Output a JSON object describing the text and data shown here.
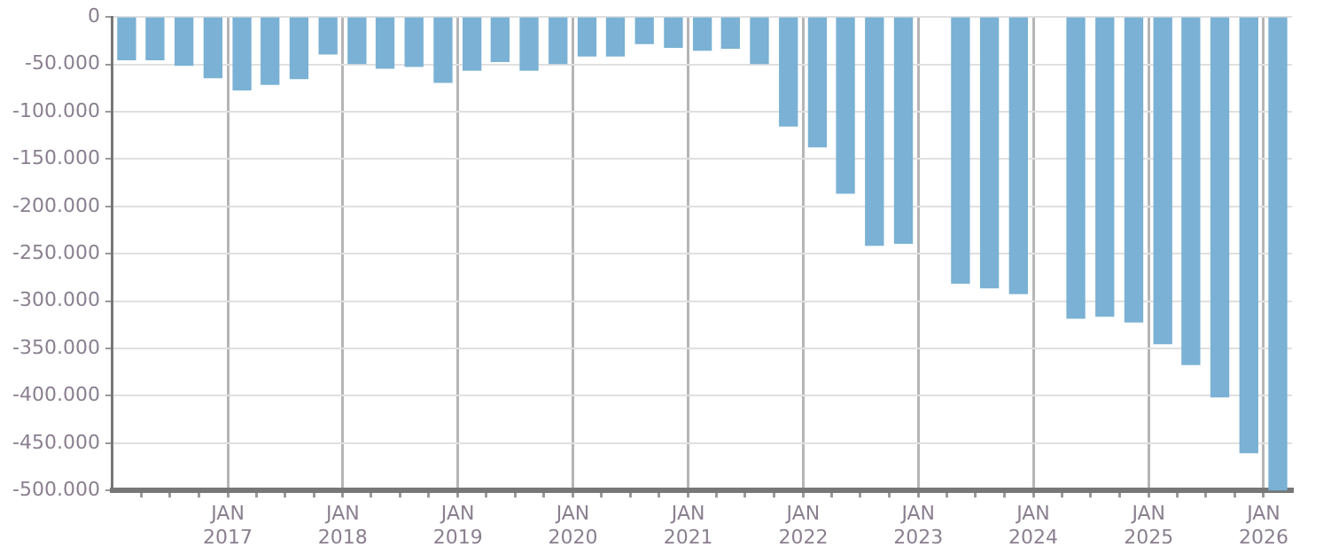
{
  "chart_data": {
    "type": "bar",
    "x": [
      "2016-02-15",
      "2016-05-15",
      "2016-08-15",
      "2016-11-15",
      "2017-02-15",
      "2017-05-15",
      "2017-08-15",
      "2017-11-15",
      "2018-02-15",
      "2018-05-15",
      "2018-08-15",
      "2018-11-15",
      "2019-02-15",
      "2019-05-15",
      "2019-08-15",
      "2019-11-15",
      "2020-02-15",
      "2020-05-15",
      "2020-08-15",
      "2020-11-15",
      "2021-02-15",
      "2021-05-15",
      "2021-08-15",
      "2021-11-15",
      "2022-02-15",
      "2022-05-15",
      "2022-08-15",
      "2022-11-15",
      "2023-02-15",
      "2023-05-15",
      "2023-08-15",
      "2023-11-15",
      "2024-02-15",
      "2024-05-15",
      "2024-08-15",
      "2024-11-15",
      "2025-02-15",
      "2025-05-15",
      "2025-08-15",
      "2025-11-15",
      "2026-02-15"
    ],
    "values": [
      -45000,
      -45000,
      -51000,
      -64000,
      -77000,
      -71000,
      -65000,
      -39000,
      -49000,
      -54000,
      -52000,
      -69000,
      -56000,
      -47000,
      -56000,
      -49000,
      -41000,
      -41000,
      -28000,
      -32000,
      -35000,
      -33000,
      -49000,
      -115000,
      -137000,
      -186000,
      -241000,
      -239000,
      null,
      -281000,
      -286000,
      -292000,
      null,
      -318000,
      -316000,
      -322000,
      -345000,
      -367000,
      -401000,
      -460000,
      -500000
    ],
    "color": "#7ab1d4",
    "ylim": [
      -500000,
      0
    ],
    "yticks": [
      0,
      {
        "value": -50000,
        "label": "-50.000"
      },
      {
        "value": -100000,
        "label": "-100.000"
      },
      {
        "value": -150000,
        "label": "-150.000"
      },
      {
        "value": -200000,
        "label": "-200.000"
      },
      {
        "value": -250000,
        "label": "-250.000"
      },
      {
        "value": -300000,
        "label": "-300.000"
      },
      {
        "value": -350000,
        "label": "-350.000"
      },
      {
        "value": -400000,
        "label": "-400.000"
      },
      {
        "value": -450000,
        "label": "-450.000"
      },
      {
        "value": -500000,
        "label": "-500.000"
      }
    ],
    "xlim": [
      "2016-01-01",
      "2026-04-01"
    ],
    "xticks": [
      {
        "value": "2016-04-01",
        "label": null
      },
      {
        "value": "2016-07-01",
        "label": null
      },
      {
        "value": "2016-10-01",
        "label": null
      },
      {
        "value": "2017-01-01",
        "label": "JAN 2017"
      },
      {
        "value": "2017-04-01",
        "label": null
      },
      {
        "value": "2017-07-01",
        "label": null
      },
      {
        "value": "2017-10-01",
        "label": null
      },
      {
        "value": "2018-01-01",
        "label": "JAN 2018"
      },
      {
        "value": "2018-04-01",
        "label": null
      },
      {
        "value": "2018-07-01",
        "label": null
      },
      {
        "value": "2018-10-01",
        "label": null
      },
      {
        "value": "2019-01-01",
        "label": "JAN 2019"
      },
      {
        "value": "2019-04-01",
        "label": null
      },
      {
        "value": "2019-07-01",
        "label": null
      },
      {
        "value": "2019-10-01",
        "label": null
      },
      {
        "value": "2020-01-01",
        "label": "JAN 2020"
      },
      {
        "value": "2020-04-01",
        "label": null
      },
      {
        "value": "2020-07-01",
        "label": null
      },
      {
        "value": "2020-10-01",
        "label": null
      },
      {
        "value": "2021-01-01",
        "label": "JAN 2021"
      },
      {
        "value": "2021-04-01",
        "label": null
      },
      {
        "value": "2021-07-01",
        "label": null
      },
      {
        "value": "2021-10-01",
        "label": null
      },
      {
        "value": "2022-01-01",
        "label": "JAN 2022"
      },
      {
        "value": "2022-04-01",
        "label": null
      },
      {
        "value": "2022-07-01",
        "label": null
      },
      {
        "value": "2022-10-01",
        "label": null
      },
      {
        "value": "2023-01-01",
        "label": "JAN 2023"
      },
      {
        "value": "2023-04-01",
        "label": null
      },
      {
        "value": "2023-07-01",
        "label": null
      },
      {
        "value": "2023-10-01",
        "label": null
      },
      {
        "value": "2024-01-01",
        "label": "JAN 2024"
      },
      {
        "value": "2024-04-01",
        "label": null
      },
      {
        "value": "2024-07-01",
        "label": null
      },
      {
        "value": "2024-10-01",
        "label": null
      },
      {
        "value": "2025-01-01",
        "label": "JAN 2025"
      },
      {
        "value": "2025-04-01",
        "label": null
      },
      {
        "value": "2025-07-01",
        "label": null
      },
      {
        "value": "2025-10-01",
        "label": null
      },
      {
        "value": "2026-01-01",
        "label": "JAN 2026"
      }
    ],
    "grid": true,
    "legend": false
  }
}
